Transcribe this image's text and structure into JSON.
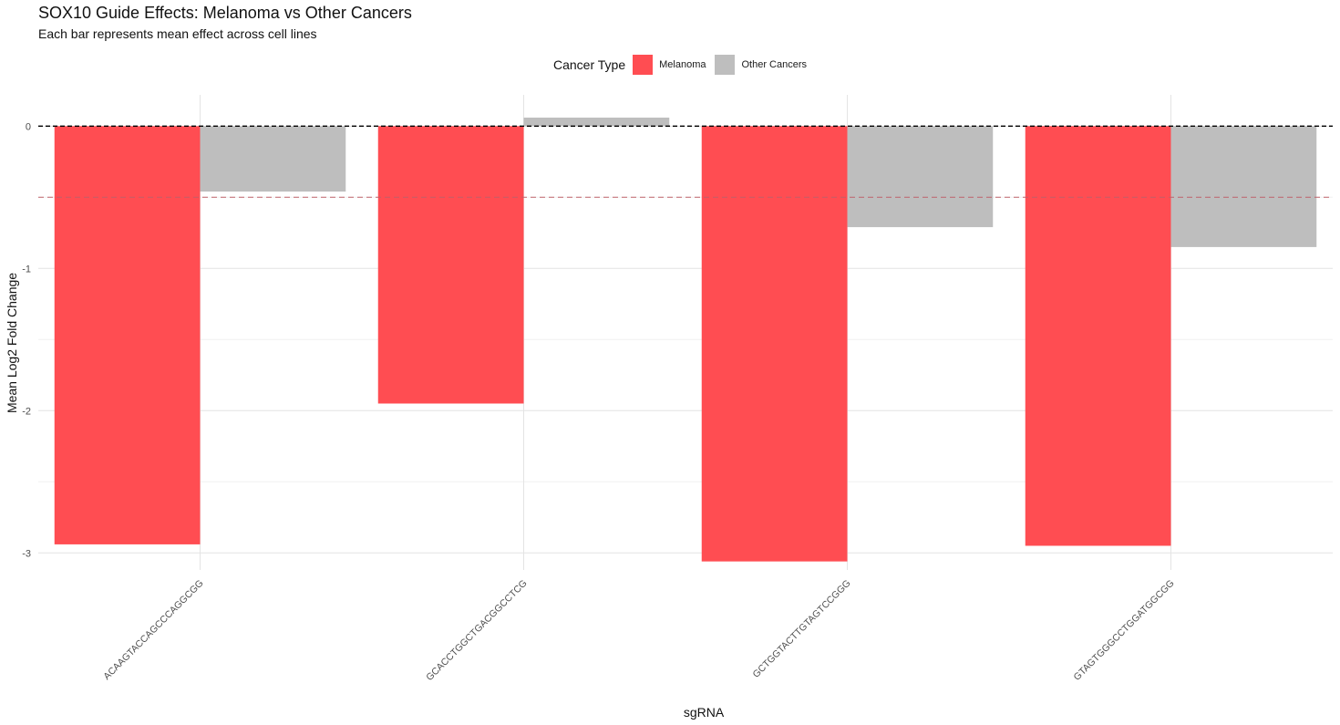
{
  "chart_data": {
    "type": "bar",
    "title": "SOX10 Guide Effects: Melanoma vs Other Cancers",
    "subtitle": "Each bar represents mean effect across cell lines",
    "xlabel": "sgRNA",
    "ylabel": "Mean Log2 Fold Change",
    "legend_title": "Cancer Type",
    "legend_position": "top",
    "categories": [
      "ACAAGTACCAGCCCAGGCGG",
      "GCACCTGGCTGACGGCCTCG",
      "GCTGGTACTTGTAGTCCGGG",
      "GTAGTGGGCCTGGATGGCGG"
    ],
    "series": [
      {
        "name": "Melanoma",
        "color": "#ff4d52",
        "values": [
          -2.94,
          -1.95,
          -3.06,
          -2.95
        ]
      },
      {
        "name": "Other Cancers",
        "color": "#bebebe",
        "values": [
          -0.46,
          0.06,
          -0.71,
          -0.85
        ]
      }
    ],
    "ylim": [
      -3.12,
      0.22
    ],
    "yticks": [
      0,
      -1,
      -2,
      -3
    ],
    "ytick_labels": [
      "0",
      "-1",
      "-2",
      "-3"
    ],
    "reference_lines": [
      {
        "y": 0,
        "color": "#000000",
        "style": "dashed"
      },
      {
        "y": -0.5,
        "color": "#c0606a",
        "style": "dashed"
      }
    ],
    "grid": true
  }
}
